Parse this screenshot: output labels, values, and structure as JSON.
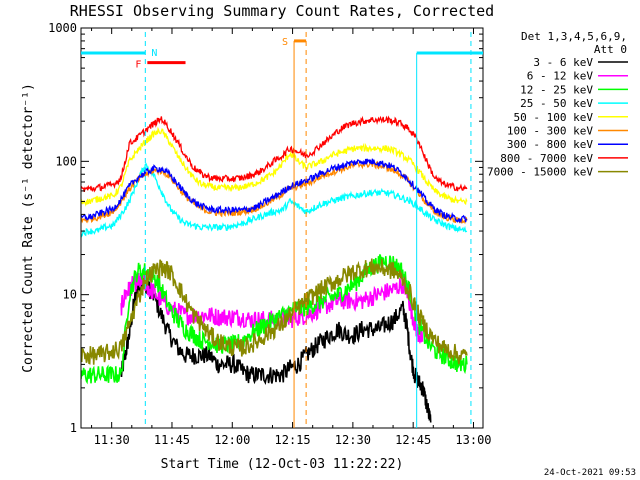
{
  "chart_data": {
    "type": "line",
    "title": "RHESSI Observing Summary Count Rates, Corrected",
    "xlabel": "Start Time (12-Oct-03 11:22:22)",
    "ylabel": "Corrected Count Rate (s⁻¹ detector⁻¹)",
    "x_unit": "minutes after 11:22:22",
    "xlim": [
      0,
      100
    ],
    "ylim": [
      1,
      1000
    ],
    "yscale": "log",
    "x_ticks": [
      {
        "label": "11:30",
        "value": 7.63
      },
      {
        "label": "11:45",
        "value": 22.63
      },
      {
        "label": "12:00",
        "value": 37.63
      },
      {
        "label": "12:15",
        "value": 52.63
      },
      {
        "label": "12:30",
        "value": 67.63
      },
      {
        "label": "12:45",
        "value": 82.63
      },
      {
        "label": "13:00",
        "value": 97.63
      }
    ],
    "y_ticks": [
      {
        "label": "1",
        "value": 1
      },
      {
        "label": "10",
        "value": 10
      },
      {
        "label": "100",
        "value": 100
      },
      {
        "label": "1000",
        "value": 1000
      }
    ],
    "legend": {
      "placement": "right",
      "header": [
        "Det 1,3,4,5,6,9,",
        "Att 0"
      ]
    },
    "series": [
      {
        "name": "3 - 6 keV",
        "color": "#000000",
        "x": [
          10,
          11,
          12,
          13,
          14,
          15,
          16,
          17,
          18,
          20,
          22,
          24,
          26,
          28,
          30,
          32,
          34,
          36,
          38,
          40,
          42,
          44,
          46,
          48,
          50,
          52,
          54,
          56,
          58,
          60,
          62,
          64,
          66,
          68,
          70,
          72,
          74,
          76,
          78,
          80,
          81,
          82,
          83,
          84,
          85,
          86,
          87
        ],
        "y": [
          2.5,
          3.5,
          5,
          8,
          11,
          12,
          12,
          11,
          10,
          7,
          5,
          4,
          3.5,
          3.5,
          3.5,
          3.5,
          3,
          3,
          3,
          2.7,
          2.5,
          2.5,
          2.5,
          2.5,
          2.5,
          2.8,
          3,
          3.5,
          4,
          4.5,
          5,
          5.5,
          5,
          5,
          5.5,
          5.5,
          5.5,
          6,
          6.5,
          8,
          6,
          3.5,
          2.5,
          2.2,
          2,
          1.5,
          1.1
        ]
      },
      {
        "name": "6 - 12 keV",
        "color": "#ff00ff",
        "x": [
          10,
          11,
          12,
          13,
          14,
          15,
          16,
          17,
          18,
          20,
          22,
          24,
          26,
          28,
          30,
          32,
          34,
          36,
          38,
          40,
          42,
          44,
          46,
          48,
          50,
          52,
          54,
          56,
          58,
          60,
          62,
          64,
          66,
          68,
          70,
          72,
          74,
          76,
          78,
          80,
          81,
          82,
          83,
          84,
          85
        ],
        "y": [
          8,
          10,
          11,
          12,
          12.5,
          12.5,
          12,
          11,
          10.5,
          9,
          8,
          7.5,
          7,
          7,
          7,
          7,
          6.8,
          6.8,
          6.8,
          6.8,
          6.5,
          6.5,
          6.5,
          6.5,
          6.5,
          6.5,
          6.8,
          7,
          7.5,
          8,
          8.5,
          9,
          9,
          9,
          9,
          9.5,
          10,
          10.5,
          11,
          12,
          11,
          8,
          6,
          5,
          4.5
        ]
      },
      {
        "name": "12 - 25 keV",
        "color": "#00ff00",
        "x": [
          0,
          2,
          4,
          6,
          8,
          10,
          12,
          14,
          16,
          18,
          20,
          22,
          24,
          26,
          28,
          30,
          32,
          34,
          36,
          38,
          40,
          42,
          44,
          46,
          48,
          50,
          52,
          54,
          56,
          58,
          60,
          62,
          64,
          66,
          68,
          70,
          72,
          74,
          76,
          78,
          80,
          82,
          84,
          86,
          88,
          90,
          92,
          94,
          96
        ],
        "y": [
          2.5,
          2.5,
          2.5,
          2.5,
          2.5,
          2.5,
          10,
          15,
          15,
          14,
          11,
          8,
          6.5,
          5.5,
          5,
          4.5,
          4.5,
          4.2,
          4.2,
          4.2,
          4.5,
          5,
          5.5,
          6,
          6.5,
          7,
          7.5,
          8,
          8,
          8.5,
          9,
          9.5,
          10,
          11,
          12,
          14,
          16,
          17,
          18,
          17,
          15,
          10,
          6,
          4.5,
          3.8,
          3.5,
          3.2,
          3,
          3
        ]
      },
      {
        "name": "25 - 50 keV",
        "color": "#00ffff",
        "x": [
          0,
          2,
          4,
          6,
          8,
          10,
          12,
          14,
          16,
          18,
          20,
          22,
          24,
          26,
          28,
          30,
          32,
          34,
          36,
          38,
          40,
          42,
          44,
          46,
          48,
          50,
          52,
          54,
          56,
          58,
          60,
          62,
          64,
          66,
          68,
          70,
          72,
          74,
          76,
          78,
          80,
          82,
          84,
          86,
          88,
          90,
          92,
          94,
          96
        ],
        "y": [
          29,
          30,
          30,
          32,
          33,
          40,
          50,
          70,
          95,
          80,
          60,
          45,
          38,
          34,
          33,
          32,
          32,
          32,
          32,
          33,
          34,
          36,
          38,
          40,
          42,
          43,
          50,
          46,
          42,
          45,
          48,
          50,
          52,
          54,
          55,
          57,
          58,
          58,
          58,
          56,
          53,
          50,
          45,
          40,
          36,
          34,
          32,
          31,
          30
        ]
      },
      {
        "name": "50 - 100 keV",
        "color": "#ffff00",
        "x": [
          0,
          2,
          4,
          6,
          8,
          10,
          12,
          14,
          16,
          18,
          20,
          22,
          24,
          26,
          28,
          30,
          32,
          34,
          36,
          38,
          40,
          42,
          44,
          46,
          48,
          50,
          52,
          54,
          56,
          58,
          60,
          62,
          64,
          66,
          68,
          70,
          72,
          74,
          76,
          78,
          80,
          82,
          84,
          86,
          88,
          90,
          92,
          94,
          96
        ],
        "y": [
          50,
          50,
          52,
          54,
          55,
          65,
          100,
          120,
          140,
          160,
          170,
          140,
          110,
          90,
          75,
          67,
          65,
          63,
          63,
          63,
          64,
          66,
          70,
          75,
          82,
          95,
          115,
          100,
          90,
          95,
          100,
          110,
          115,
          120,
          125,
          125,
          125,
          125,
          125,
          120,
          110,
          100,
          85,
          70,
          60,
          55,
          52,
          50,
          50
        ]
      },
      {
        "name": "100 - 300 keV",
        "color": "#ff8800",
        "x": [
          0,
          2,
          4,
          6,
          8,
          10,
          12,
          14,
          16,
          18,
          20,
          22,
          24,
          26,
          28,
          30,
          32,
          34,
          36,
          38,
          40,
          42,
          44,
          46,
          48,
          50,
          52,
          54,
          56,
          58,
          60,
          62,
          64,
          66,
          68,
          70,
          72,
          74,
          76,
          78,
          80,
          82,
          84,
          86,
          88,
          90,
          92,
          94,
          96
        ],
        "y": [
          36,
          37,
          38,
          40,
          42,
          50,
          62,
          72,
          80,
          85,
          85,
          78,
          65,
          55,
          48,
          44,
          42,
          41,
          41,
          41,
          42,
          43,
          45,
          48,
          52,
          57,
          63,
          65,
          68,
          72,
          78,
          82,
          86,
          90,
          93,
          95,
          95,
          93,
          90,
          85,
          78,
          68,
          58,
          48,
          42,
          39,
          37,
          36,
          36
        ]
      },
      {
        "name": "300 - 800 keV",
        "color": "#0000ff",
        "x": [
          0,
          2,
          4,
          6,
          8,
          10,
          12,
          14,
          16,
          18,
          20,
          22,
          24,
          26,
          28,
          30,
          32,
          34,
          36,
          38,
          40,
          42,
          44,
          46,
          48,
          50,
          52,
          54,
          56,
          58,
          60,
          62,
          64,
          66,
          68,
          70,
          72,
          74,
          76,
          78,
          80,
          82,
          84,
          86,
          88,
          90,
          92,
          94,
          96
        ],
        "y": [
          38,
          38,
          40,
          42,
          44,
          52,
          65,
          75,
          82,
          88,
          88,
          80,
          68,
          57,
          50,
          46,
          44,
          43,
          43,
          43,
          43,
          44,
          46,
          50,
          54,
          59,
          65,
          68,
          72,
          76,
          82,
          87,
          91,
          95,
          98,
          100,
          100,
          98,
          95,
          89,
          81,
          70,
          60,
          50,
          44,
          40,
          38,
          37,
          37
        ]
      },
      {
        "name": "800 - 7000 keV",
        "color": "#ff0000",
        "x": [
          0,
          2,
          4,
          6,
          8,
          10,
          12,
          14,
          16,
          18,
          20,
          22,
          24,
          26,
          28,
          30,
          32,
          34,
          36,
          38,
          40,
          42,
          44,
          46,
          48,
          50,
          52,
          54,
          56,
          58,
          60,
          62,
          64,
          66,
          68,
          70,
          72,
          74,
          76,
          78,
          80,
          82,
          84,
          86,
          88,
          90,
          92,
          94,
          96
        ],
        "y": [
          62,
          62,
          63,
          65,
          67,
          75,
          135,
          150,
          170,
          190,
          210,
          175,
          140,
          110,
          90,
          80,
          76,
          74,
          74,
          74,
          75,
          78,
          82,
          90,
          100,
          110,
          125,
          118,
          110,
          120,
          135,
          150,
          170,
          185,
          195,
          200,
          205,
          205,
          205,
          200,
          190,
          170,
          140,
          100,
          75,
          68,
          65,
          63,
          62
        ]
      },
      {
        "name": "7000 - 15000 keV",
        "color": "#888800",
        "x": [
          0,
          2,
          4,
          6,
          8,
          10,
          12,
          14,
          16,
          18,
          20,
          22,
          24,
          26,
          28,
          30,
          32,
          34,
          36,
          38,
          40,
          42,
          44,
          46,
          48,
          50,
          52,
          54,
          56,
          58,
          60,
          62,
          64,
          66,
          68,
          70,
          72,
          74,
          76,
          78,
          80,
          82,
          84,
          86,
          88,
          90,
          92,
          94,
          96
        ],
        "y": [
          3.5,
          3.5,
          3.5,
          3.6,
          3.8,
          4,
          6,
          9,
          13,
          15,
          16,
          15,
          12,
          9,
          7,
          6,
          5,
          4.5,
          4.2,
          4,
          4,
          4.2,
          4.5,
          5,
          5.5,
          6,
          7,
          8,
          9,
          10,
          11,
          12,
          13,
          14,
          15,
          15.5,
          16,
          16,
          15.5,
          15,
          13,
          10,
          7,
          5.5,
          4.5,
          4,
          3.8,
          3.5,
          3.5
        ]
      }
    ],
    "annotations": [
      {
        "label": "N",
        "color": "#00e5ff",
        "kind": "bar",
        "level": 650,
        "x_ranges": [
          [
            0,
            16
          ],
          [
            83.5,
            100
          ]
        ]
      },
      {
        "label": "F",
        "color": "#ff0000",
        "kind": "bar",
        "level": 550,
        "x_ranges": [
          [
            16.5,
            26
          ]
        ]
      },
      {
        "label": "S",
        "color": "#ff8800",
        "kind": "bar",
        "level": 800,
        "x_ranges": [
          [
            53,
            56
          ]
        ]
      },
      {
        "label": "",
        "color": "#00e5ff",
        "kind": "vline-dashed",
        "x_values": [
          16,
          97
        ]
      },
      {
        "label": "",
        "color": "#00e5ff",
        "kind": "vline-solid",
        "x_values": [
          83.5
        ]
      },
      {
        "label": "",
        "color": "#ff8800",
        "kind": "vline-solid",
        "x_values": [
          53
        ]
      },
      {
        "label": "",
        "color": "#ff8800",
        "kind": "vline-dashed",
        "x_values": [
          56
        ]
      }
    ]
  },
  "footer": {
    "timestamp": "24-Oct-2021 09:53"
  }
}
